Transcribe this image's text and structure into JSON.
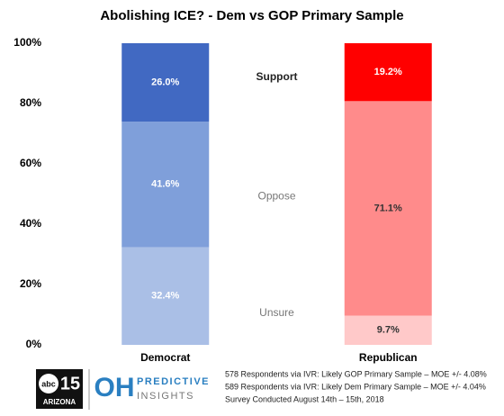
{
  "chart_data": {
    "type": "stacked_bar",
    "title": "Abolishing ICE? - Dem vs GOP Primary Sample",
    "categories": [
      "Democrat",
      "Republican"
    ],
    "series": [
      {
        "name": "Unsure",
        "colors": [
          "#aabfe6",
          "#ffc9c9"
        ],
        "values": [
          32.4,
          9.7
        ],
        "value_labels": [
          "32.4%",
          "9.7%"
        ]
      },
      {
        "name": "Oppose",
        "colors": [
          "#7f9fda",
          "#ff8b8b"
        ],
        "values": [
          41.6,
          71.1
        ],
        "value_labels": [
          "41.6%",
          "71.1%"
        ]
      },
      {
        "name": "Support",
        "colors": [
          "#4169c2",
          "#ff0000"
        ],
        "values": [
          26.0,
          19.2
        ],
        "value_labels": [
          "26.0%",
          "19.2%"
        ]
      }
    ],
    "ylim": [
      0,
      100
    ],
    "yticks": [
      {
        "value": 0,
        "label": "0%"
      },
      {
        "value": 20,
        "label": "20%"
      },
      {
        "value": 40,
        "label": "40%"
      },
      {
        "value": 60,
        "label": "60%"
      },
      {
        "value": 80,
        "label": "80%"
      },
      {
        "value": 100,
        "label": "100%"
      }
    ],
    "grid": false,
    "logos": [
      "abc",
      "15",
      "ARIZONA",
      "OH",
      "PREDICTIVE",
      "INSIGHTS"
    ],
    "notes": [
      "578 Respondents via IVR: Likely GOP Primary Sample – MOE +/- 4.08%",
      "589 Respondents via IVR: Likely Dem Primary Sample – MOE +/- 4.04%",
      "Survey Conducted August 14th – 15th, 2018"
    ]
  }
}
